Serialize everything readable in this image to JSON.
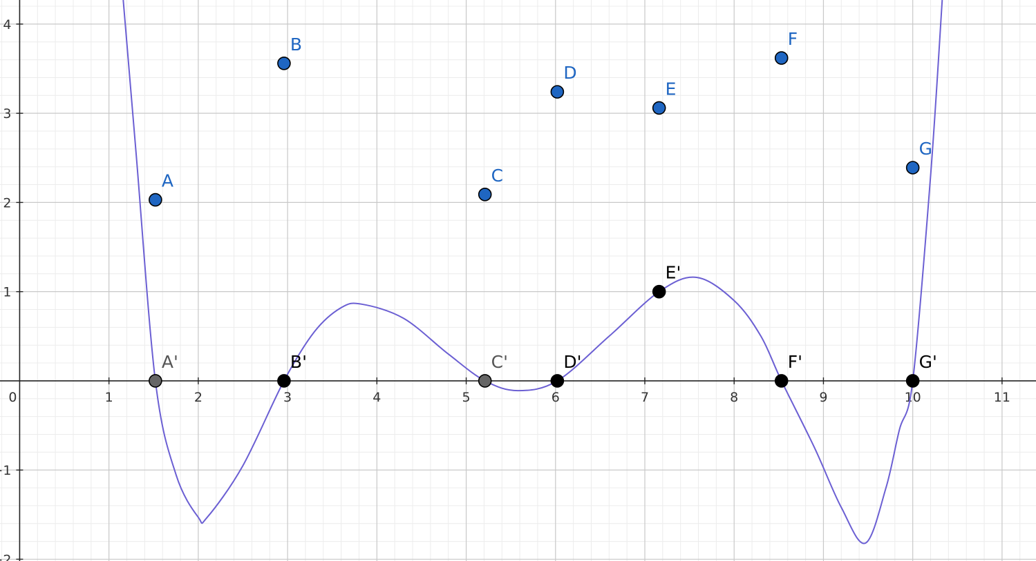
{
  "chart_data": {
    "type": "scatter",
    "title": "",
    "xlabel": "",
    "ylabel": "",
    "xlim": [
      -0.22,
      11.38
    ],
    "ylim": [
      -2.02,
      4.27
    ],
    "grid": true,
    "x_ticks": [
      "0",
      "1",
      "2",
      "3",
      "4",
      "5",
      "6",
      "7",
      "8",
      "9",
      "10",
      "11"
    ],
    "y_ticks": [
      "-2",
      "-1",
      "1",
      "2",
      "3",
      "4"
    ],
    "curve_color": "#6b5fd3",
    "blue_point_color": "#1f66c2",
    "black_point_color": "#000000",
    "gray_point_color": "#666666",
    "points": [
      {
        "label": "A",
        "x": 1.52,
        "y": 2.03,
        "color": "blue"
      },
      {
        "label": "B",
        "x": 2.96,
        "y": 3.56,
        "color": "blue"
      },
      {
        "label": "C",
        "x": 5.21,
        "y": 2.09,
        "color": "blue"
      },
      {
        "label": "D",
        "x": 6.02,
        "y": 3.24,
        "color": "blue"
      },
      {
        "label": "E",
        "x": 7.16,
        "y": 3.06,
        "color": "blue"
      },
      {
        "label": "F",
        "x": 8.53,
        "y": 3.62,
        "color": "blue"
      },
      {
        "label": "G",
        "x": 10.0,
        "y": 2.39,
        "color": "blue"
      },
      {
        "label": "A'",
        "x": 1.52,
        "y": 0,
        "color": "gray"
      },
      {
        "label": "B'",
        "x": 2.96,
        "y": 0,
        "color": "black"
      },
      {
        "label": "C'",
        "x": 5.21,
        "y": 0,
        "color": "gray"
      },
      {
        "label": "D'",
        "x": 6.02,
        "y": 0,
        "color": "black"
      },
      {
        "label": "E'",
        "x": 7.16,
        "y": 1,
        "color": "black"
      },
      {
        "label": "F'",
        "x": 8.53,
        "y": 0,
        "color": "black"
      },
      {
        "label": "G'",
        "x": 10.0,
        "y": 0,
        "color": "black"
      }
    ],
    "curve_points": [
      [
        1.16,
        4.27
      ],
      [
        1.3,
        2.6
      ],
      [
        1.52,
        0
      ],
      [
        1.75,
        -1.05
      ],
      [
        2.0,
        -1.53
      ],
      [
        2.1,
        -1.53
      ],
      [
        2.5,
        -0.95
      ],
      [
        2.96,
        0
      ],
      [
        3.3,
        0.55
      ],
      [
        3.6,
        0.82
      ],
      [
        3.83,
        0.86
      ],
      [
        4.3,
        0.7
      ],
      [
        4.8,
        0.3
      ],
      [
        5.21,
        0
      ],
      [
        5.58,
        -0.11
      ],
      [
        6.02,
        0
      ],
      [
        6.6,
        0.5
      ],
      [
        7.16,
        1
      ],
      [
        7.58,
        1.16
      ],
      [
        8.0,
        0.9
      ],
      [
        8.3,
        0.5
      ],
      [
        8.53,
        0
      ],
      [
        8.9,
        -0.75
      ],
      [
        9.2,
        -1.42
      ],
      [
        9.47,
        -1.82
      ],
      [
        9.7,
        -1.2
      ],
      [
        9.85,
        -0.55
      ],
      [
        10.0,
        0
      ],
      [
        10.2,
        2.3
      ],
      [
        10.33,
        4.27
      ]
    ]
  }
}
